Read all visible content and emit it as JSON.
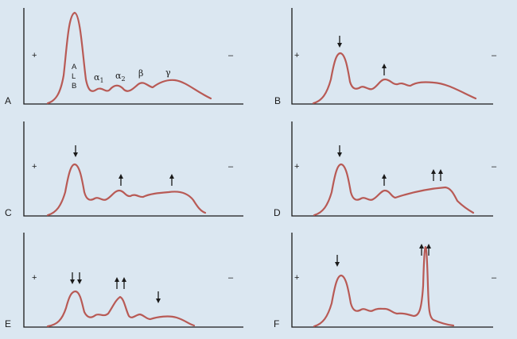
{
  "panels": [
    {
      "letter": "A",
      "plus": "+",
      "minus": "–",
      "alb_letters": [
        "A",
        "L",
        "B"
      ],
      "fraction_labels": [
        {
          "main": "α",
          "sub": "1"
        },
        {
          "main": "α",
          "sub": "2"
        },
        {
          "main": "β",
          "sub": ""
        },
        {
          "main": "γ",
          "sub": ""
        }
      ],
      "arrows": []
    },
    {
      "letter": "B",
      "plus": "+",
      "minus": "–",
      "arrows": [
        {
          "band": "albumin",
          "direction": "down",
          "count": 1
        },
        {
          "band": "alpha2",
          "direction": "up",
          "count": 1
        }
      ]
    },
    {
      "letter": "C",
      "plus": "+",
      "minus": "–",
      "arrows": [
        {
          "band": "albumin",
          "direction": "down",
          "count": 1
        },
        {
          "band": "alpha2",
          "direction": "up",
          "count": 1
        },
        {
          "band": "gamma",
          "direction": "up",
          "count": 1
        }
      ]
    },
    {
      "letter": "D",
      "plus": "+",
      "minus": "–",
      "arrows": [
        {
          "band": "albumin",
          "direction": "down",
          "count": 1
        },
        {
          "band": "alpha2",
          "direction": "up",
          "count": 1
        },
        {
          "band": "gamma",
          "direction": "up",
          "count": 2
        }
      ]
    },
    {
      "letter": "E",
      "plus": "+",
      "minus": "–",
      "arrows": [
        {
          "band": "albumin",
          "direction": "down",
          "count": 2
        },
        {
          "band": "alpha2",
          "direction": "up",
          "count": 2
        },
        {
          "band": "gamma",
          "direction": "down",
          "count": 1
        }
      ]
    },
    {
      "letter": "F",
      "plus": "+",
      "minus": "–",
      "arrows": [
        {
          "band": "albumin",
          "direction": "down",
          "count": 1
        },
        {
          "band": "m-spike",
          "direction": "up",
          "count": 2
        }
      ]
    }
  ],
  "colors": {
    "background": "#dbe7f1",
    "curve": "#b85a55",
    "axis": "#1a1a1a"
  }
}
